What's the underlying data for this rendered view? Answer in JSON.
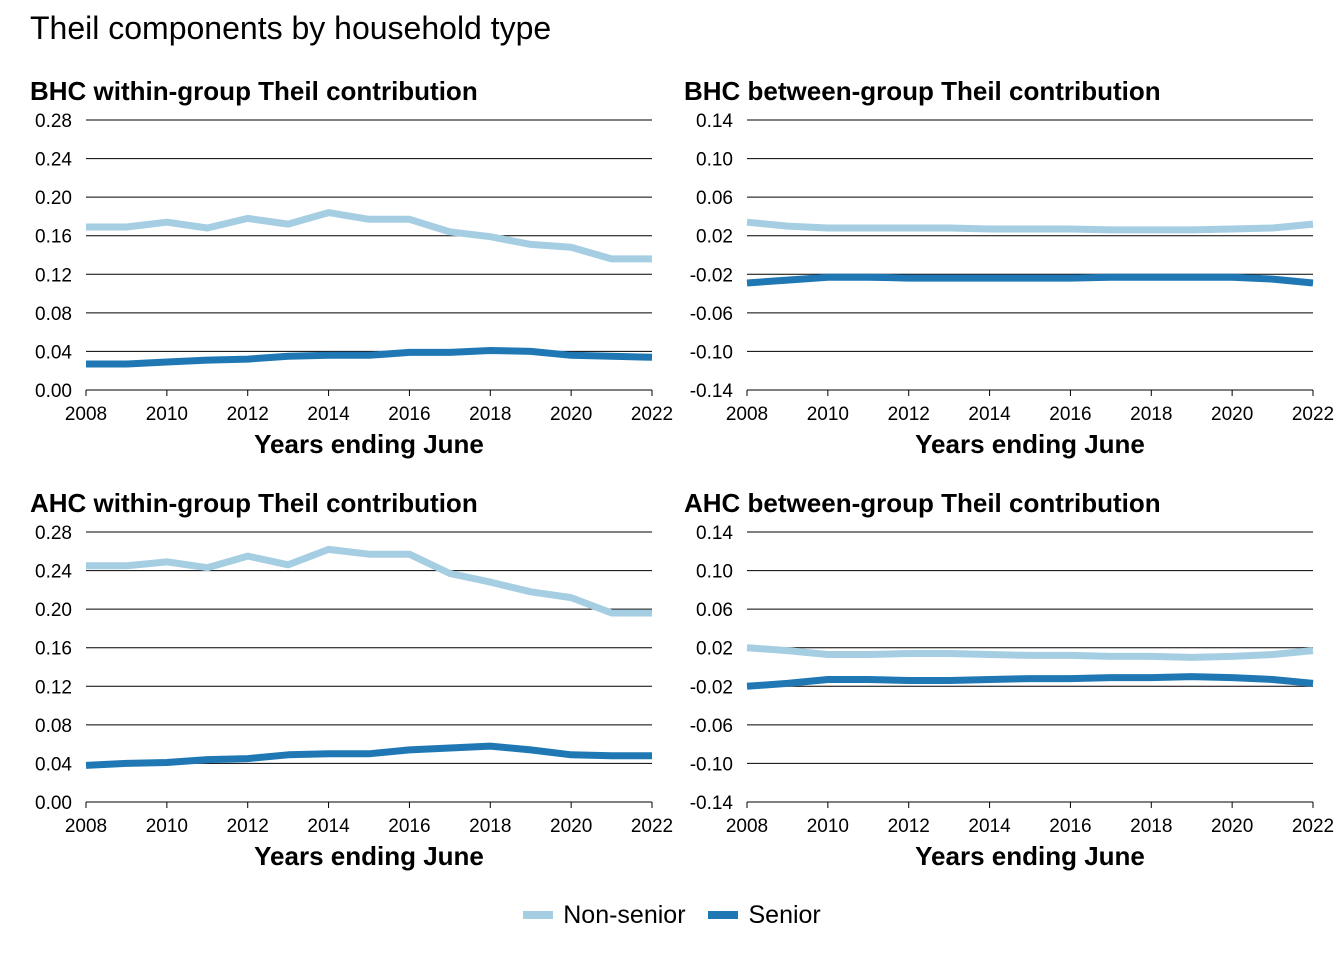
{
  "title": "Theil components by household type",
  "colors": {
    "non_senior": "#a6cee3",
    "senior": "#1f78b4"
  },
  "legend": [
    {
      "label": "Non-senior",
      "color": "#a6cee3"
    },
    {
      "label": "Senior",
      "color": "#1f78b4"
    }
  ],
  "chart_data": [
    {
      "type": "line",
      "title": "BHC within-group Theil contribution",
      "xlabel": "Years ending June",
      "ylabel": "",
      "ylim": [
        0.0,
        0.28
      ],
      "yticks": [
        "0.28",
        "0.24",
        "0.20",
        "0.16",
        "0.12",
        "0.08",
        "0.04",
        "0.00"
      ],
      "xticks": [
        "2008",
        "2010",
        "2012",
        "2014",
        "2016",
        "2018",
        "2020",
        "2022"
      ],
      "x": [
        2008,
        2009,
        2010,
        2011,
        2012,
        2013,
        2014,
        2015,
        2016,
        2017,
        2018,
        2019,
        2020,
        2021,
        2022
      ],
      "series": [
        {
          "name": "Non-senior",
          "values": [
            0.169,
            0.169,
            0.174,
            0.168,
            0.178,
            0.172,
            0.184,
            0.177,
            0.177,
            0.164,
            0.159,
            0.151,
            0.148,
            0.136,
            0.136
          ]
        },
        {
          "name": "Senior",
          "values": [
            0.027,
            0.027,
            0.029,
            0.031,
            0.032,
            0.035,
            0.036,
            0.036,
            0.039,
            0.039,
            0.041,
            0.04,
            0.036,
            0.035,
            0.034
          ]
        }
      ]
    },
    {
      "type": "line",
      "title": "BHC between-group Theil contribution",
      "xlabel": "Years ending June",
      "ylabel": "",
      "ylim": [
        -0.14,
        0.14
      ],
      "yticks": [
        "0.14",
        "0.10",
        "0.06",
        "0.02",
        "-0.02",
        "-0.06",
        "-0.10",
        "-0.14"
      ],
      "xticks": [
        "2008",
        "2010",
        "2012",
        "2014",
        "2016",
        "2018",
        "2020",
        "2022"
      ],
      "x": [
        2008,
        2009,
        2010,
        2011,
        2012,
        2013,
        2014,
        2015,
        2016,
        2017,
        2018,
        2019,
        2020,
        2021,
        2022
      ],
      "series": [
        {
          "name": "Non-senior",
          "values": [
            0.034,
            0.03,
            0.028,
            0.028,
            0.028,
            0.028,
            0.027,
            0.027,
            0.027,
            0.026,
            0.026,
            0.026,
            0.027,
            0.028,
            0.032
          ]
        },
        {
          "name": "Senior",
          "values": [
            -0.029,
            -0.026,
            -0.023,
            -0.023,
            -0.024,
            -0.024,
            -0.024,
            -0.024,
            -0.024,
            -0.023,
            -0.023,
            -0.023,
            -0.023,
            -0.025,
            -0.029
          ]
        }
      ]
    },
    {
      "type": "line",
      "title": "AHC within-group Theil contribution",
      "xlabel": "Years ending June",
      "ylabel": "",
      "ylim": [
        0.0,
        0.28
      ],
      "yticks": [
        "0.28",
        "0.24",
        "0.20",
        "0.16",
        "0.12",
        "0.08",
        "0.04",
        "0.00"
      ],
      "xticks": [
        "2008",
        "2010",
        "2012",
        "2014",
        "2016",
        "2018",
        "2020",
        "2022"
      ],
      "x": [
        2008,
        2009,
        2010,
        2011,
        2012,
        2013,
        2014,
        2015,
        2016,
        2017,
        2018,
        2019,
        2020,
        2021,
        2022
      ],
      "series": [
        {
          "name": "Non-senior",
          "values": [
            0.245,
            0.245,
            0.249,
            0.243,
            0.255,
            0.246,
            0.262,
            0.257,
            0.257,
            0.237,
            0.228,
            0.218,
            0.212,
            0.196,
            0.196
          ]
        },
        {
          "name": "Senior",
          "values": [
            0.038,
            0.04,
            0.041,
            0.044,
            0.045,
            0.049,
            0.05,
            0.05,
            0.054,
            0.056,
            0.058,
            0.054,
            0.049,
            0.048,
            0.048
          ]
        }
      ]
    },
    {
      "type": "line",
      "title": "AHC between-group Theil contribution",
      "xlabel": "Years ending June",
      "ylabel": "",
      "ylim": [
        -0.14,
        0.14
      ],
      "yticks": [
        "0.14",
        "0.10",
        "0.06",
        "0.02",
        "-0.02",
        "-0.06",
        "-0.10",
        "-0.14"
      ],
      "xticks": [
        "2008",
        "2010",
        "2012",
        "2014",
        "2016",
        "2018",
        "2020",
        "2022"
      ],
      "x": [
        2008,
        2009,
        2010,
        2011,
        2012,
        2013,
        2014,
        2015,
        2016,
        2017,
        2018,
        2019,
        2020,
        2021,
        2022
      ],
      "series": [
        {
          "name": "Non-senior",
          "values": [
            0.02,
            0.017,
            0.013,
            0.013,
            0.014,
            0.014,
            0.013,
            0.012,
            0.012,
            0.011,
            0.011,
            0.01,
            0.011,
            0.013,
            0.017
          ]
        },
        {
          "name": "Senior",
          "values": [
            -0.02,
            -0.017,
            -0.013,
            -0.013,
            -0.014,
            -0.014,
            -0.013,
            -0.012,
            -0.012,
            -0.011,
            -0.011,
            -0.01,
            -0.011,
            -0.013,
            -0.017
          ]
        }
      ]
    }
  ]
}
